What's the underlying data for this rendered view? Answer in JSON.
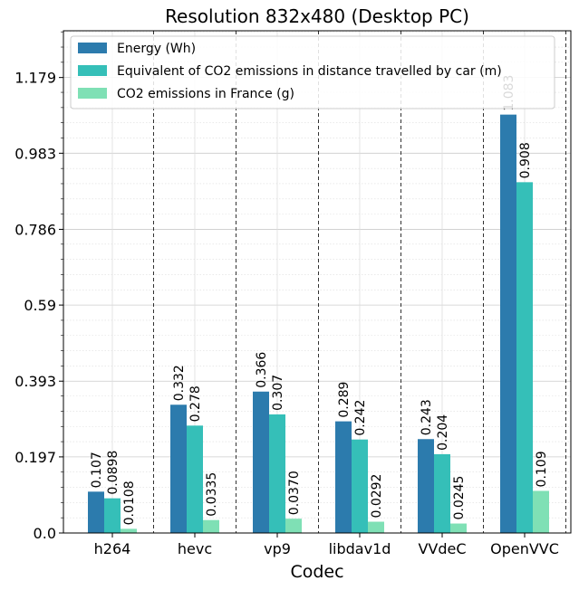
{
  "chart_data": {
    "type": "bar",
    "title": "Resolution 832x480 (Desktop PC)",
    "xlabel": "Codec",
    "ylabel": "",
    "categories": [
      "h264",
      "hevc",
      "vp9",
      "libdav1d",
      "VVdeC",
      "OpenVVC"
    ],
    "series": [
      {
        "name": "Energy (Wh)",
        "color": "#2c7bad",
        "values": [
          0.107,
          0.332,
          0.366,
          0.289,
          0.243,
          1.083
        ],
        "labels": [
          "0.107",
          "0.332",
          "0.366",
          "0.289",
          "0.243",
          "1.083"
        ]
      },
      {
        "name": "Equivalent of CO2 emissions in distance travelled by car (m)",
        "color": "#35bfb8",
        "values": [
          0.0898,
          0.278,
          0.307,
          0.242,
          0.204,
          0.908
        ],
        "labels": [
          "0.0898",
          "0.278",
          "0.307",
          "0.242",
          "0.204",
          "0.908"
        ]
      },
      {
        "name": "CO2 emissions in France (g)",
        "color": "#7fe0b5",
        "values": [
          0.0108,
          0.0335,
          0.037,
          0.0292,
          0.0245,
          0.109
        ],
        "labels": [
          "0.0108",
          "0.0335",
          "0.0370",
          "0.0292",
          "0.0245",
          "0.109"
        ]
      }
    ],
    "yticks": [
      0.0,
      0.197,
      0.393,
      0.59,
      0.786,
      0.983,
      1.179
    ],
    "ytick_labels": [
      "0.0",
      "0.197",
      "0.393",
      "0.59",
      "0.786",
      "0.983",
      "1.179"
    ],
    "ylim": [
      0,
      1.3
    ],
    "grid": true,
    "legend_position": "top-left"
  }
}
